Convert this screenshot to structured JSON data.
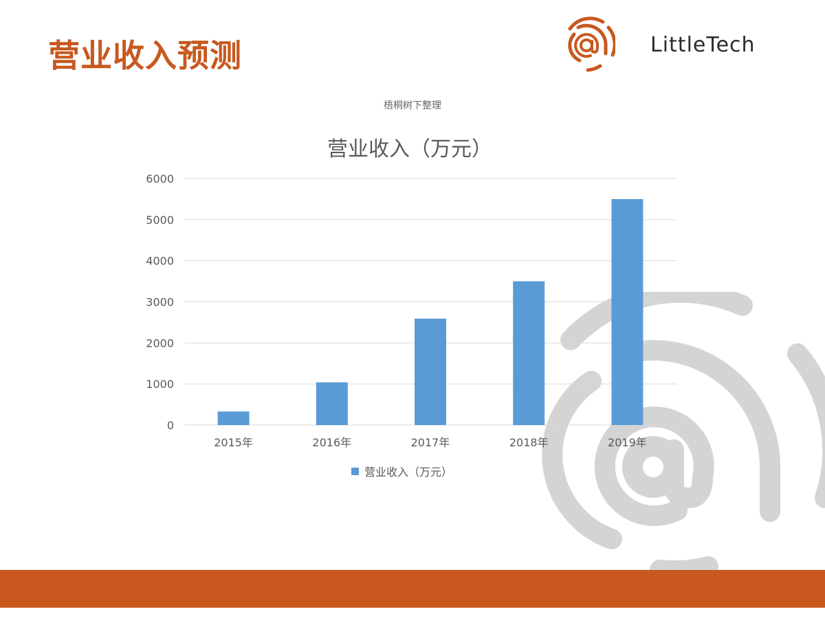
{
  "slide": {
    "title": "营业收入预测",
    "note": "梧桐树下整理",
    "brand_name": "LittleTech"
  },
  "colors": {
    "accent": "#c8581e",
    "bar": "#5b9bd5",
    "grid": "#d9d9d9",
    "watermark": "#d4d4d4"
  },
  "icons": {
    "logo": "at-fingerprint-icon",
    "watermark": "at-fingerprint-watermark-icon"
  },
  "chart_data": {
    "type": "bar",
    "title": "营业收入（万元）",
    "categories": [
      "2015年",
      "2016年",
      "2017年",
      "2018年",
      "2019年"
    ],
    "series": [
      {
        "name": "营业收入（万元）",
        "values": [
          330,
          1040,
          2590,
          3500,
          5500
        ]
      }
    ],
    "ylim": [
      0,
      6000
    ],
    "yticks": [
      0,
      1000,
      2000,
      3000,
      4000,
      5000,
      6000
    ],
    "grid": true,
    "legend": "bottom"
  }
}
